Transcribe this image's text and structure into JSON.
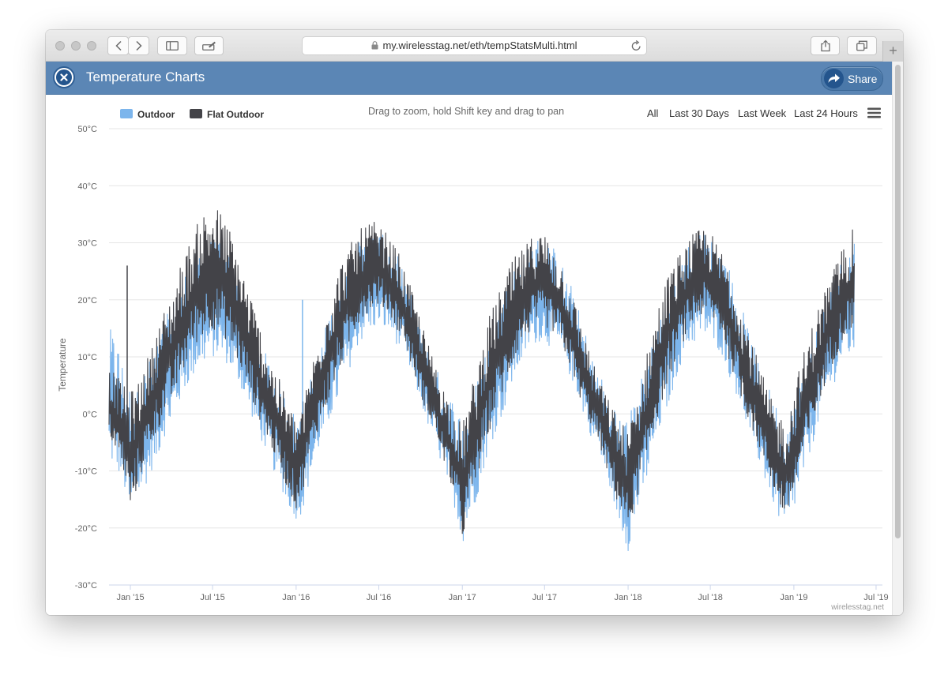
{
  "browser": {
    "url": "my.wirelesstag.net/eth/tempStatsMulti.html",
    "new_tab_label": "+"
  },
  "app": {
    "title": "Temperature Charts",
    "share_label": "Share"
  },
  "controls": {
    "hint": "Drag to zoom, hold Shift key and drag to pan",
    "ranges": [
      "All",
      "Last 30 Days",
      "Last Week",
      "Last 24 Hours"
    ],
    "credits": "wirelesstag.net"
  },
  "colors": {
    "outdoor": "#7cb5ec",
    "flat_outdoor": "#434348",
    "header": "#5b86b5"
  },
  "chart_data": {
    "type": "line",
    "ylabel": "Temperature",
    "ylim": [
      -30,
      50
    ],
    "yticks": [
      -30,
      -20,
      -10,
      0,
      10,
      20,
      30,
      40,
      50
    ],
    "ytick_labels": [
      "-30°C",
      "-20°C",
      "-10°C",
      "0°C",
      "10°C",
      "20°C",
      "30°C",
      "40°C",
      "50°C"
    ],
    "xlim": [
      "2014-11-15",
      "2019-07-15"
    ],
    "xticks": [
      "2015-01-01",
      "2015-07-01",
      "2016-01-01",
      "2016-07-01",
      "2017-01-01",
      "2017-07-01",
      "2018-01-01",
      "2018-07-01",
      "2019-01-01",
      "2019-07-01"
    ],
    "xtick_labels": [
      "Jan '15",
      "Jul '15",
      "Jan '16",
      "Jul '16",
      "Jan '17",
      "Jul '17",
      "Jan '18",
      "Jul '18",
      "Jan '19",
      "Jul '19"
    ],
    "grid": true,
    "legend_position": "top-left",
    "series": [
      {
        "name": "Outdoor",
        "x": [
          "2014-11-15",
          "2014-12-01",
          "2014-12-15",
          "2015-01-01",
          "2015-01-15",
          "2015-02-01",
          "2015-02-15",
          "2015-03-01",
          "2015-03-15",
          "2015-04-01",
          "2015-04-15",
          "2015-05-01",
          "2015-05-15",
          "2015-06-01",
          "2015-06-15",
          "2015-07-01",
          "2015-07-15",
          "2015-08-01",
          "2015-08-15",
          "2015-09-01",
          "2015-09-15",
          "2015-10-01",
          "2015-10-15",
          "2015-11-01",
          "2015-11-15",
          "2015-12-01",
          "2015-12-15",
          "2016-01-01",
          "2016-01-15",
          "2016-02-01",
          "2016-02-15",
          "2016-03-01",
          "2016-03-15",
          "2016-04-01",
          "2016-04-15",
          "2016-05-01",
          "2016-05-15",
          "2016-06-01",
          "2016-06-15",
          "2016-07-01",
          "2016-07-15",
          "2016-08-01",
          "2016-08-15",
          "2016-09-01",
          "2016-09-15",
          "2016-10-01",
          "2016-10-15",
          "2016-11-01",
          "2016-11-15",
          "2016-12-01",
          "2016-12-15",
          "2017-01-01",
          "2017-01-15",
          "2017-02-01",
          "2017-02-15",
          "2017-03-01",
          "2017-03-15",
          "2017-04-01",
          "2017-04-15",
          "2017-05-01",
          "2017-05-15",
          "2017-06-01",
          "2017-06-15",
          "2017-07-01",
          "2017-07-15",
          "2017-08-01",
          "2017-08-15",
          "2017-09-01",
          "2017-09-15",
          "2017-10-01",
          "2017-10-15",
          "2017-11-01",
          "2017-11-15",
          "2017-12-01",
          "2017-12-15",
          "2018-01-01",
          "2018-01-15",
          "2018-02-01",
          "2018-02-15",
          "2018-03-01",
          "2018-03-15",
          "2018-04-01",
          "2018-04-15",
          "2018-05-01",
          "2018-05-15",
          "2018-06-01",
          "2018-06-15",
          "2018-07-01",
          "2018-07-15",
          "2018-08-01",
          "2018-08-15",
          "2018-09-01",
          "2018-09-15",
          "2018-10-01",
          "2018-10-15",
          "2018-11-01",
          "2018-11-15",
          "2018-12-01",
          "2018-12-15",
          "2019-01-01",
          "2019-01-15",
          "2019-02-01",
          "2019-02-15",
          "2019-03-01",
          "2019-03-15",
          "2019-04-01",
          "2019-04-15",
          "2019-05-01",
          "2019-05-15",
          "2019-06-01",
          "2019-06-15",
          "2019-07-01",
          "2019-07-15"
        ],
        "min": [
          -11,
          -12,
          -14,
          -21,
          -17,
          -15,
          -12,
          -10,
          -6,
          -4,
          -1,
          2,
          4,
          6,
          7,
          8,
          8,
          7,
          5,
          3,
          0,
          -3,
          -6,
          -9,
          -12,
          -15,
          -18,
          -20,
          -19,
          -13,
          -9,
          -6,
          -3,
          0,
          4,
          7,
          10,
          12,
          13,
          14,
          13,
          12,
          10,
          8,
          4,
          1,
          -3,
          -6,
          -10,
          -14,
          -18,
          -25,
          -21,
          -17,
          -12,
          -8,
          -5,
          -2,
          2,
          5,
          8,
          10,
          11,
          11,
          10,
          9,
          7,
          4,
          1,
          -3,
          -6,
          -9,
          -13,
          -17,
          -22,
          -26,
          -22,
          -17,
          -13,
          -8,
          -4,
          0,
          4,
          8,
          10,
          11,
          12,
          11,
          10,
          8,
          4,
          1,
          -3,
          -6,
          -10,
          -14,
          -17,
          -21,
          -24,
          -19,
          -15,
          -10,
          -6,
          -2,
          1,
          4,
          7,
          8,
          8
        ],
        "max": [
          15,
          14,
          9,
          5,
          4,
          8,
          10,
          13,
          16,
          19,
          22,
          25,
          27,
          29,
          30,
          31,
          30,
          29,
          26,
          22,
          18,
          15,
          12,
          10,
          7,
          5,
          2,
          0,
          1,
          6,
          10,
          14,
          18,
          22,
          25,
          27,
          30,
          31,
          32,
          32,
          31,
          30,
          27,
          23,
          20,
          16,
          12,
          9,
          6,
          4,
          2,
          0,
          2,
          6,
          10,
          14,
          18,
          21,
          24,
          27,
          28,
          30,
          31,
          31,
          30,
          28,
          25,
          22,
          18,
          14,
          10,
          7,
          4,
          2,
          0,
          -1,
          3,
          7,
          11,
          15,
          18,
          22,
          25,
          28,
          30,
          31,
          32,
          31,
          30,
          28,
          25,
          21,
          17,
          13,
          9,
          6,
          3,
          1,
          -1,
          3,
          7,
          11,
          15,
          18,
          21,
          24,
          27,
          29,
          32,
          30,
          29
        ]
      },
      {
        "name": "Flat Outdoor",
        "x": [
          "2014-11-15",
          "2014-12-01",
          "2014-12-15",
          "2015-01-01",
          "2015-01-15",
          "2015-02-01",
          "2015-02-15",
          "2015-03-01",
          "2015-03-15",
          "2015-04-01",
          "2015-04-15",
          "2015-05-01",
          "2015-05-15",
          "2015-06-01",
          "2015-06-15",
          "2015-07-01",
          "2015-07-15",
          "2015-08-01",
          "2015-08-15",
          "2015-09-01",
          "2015-09-15",
          "2015-10-01",
          "2015-10-15",
          "2015-11-01",
          "2015-11-15",
          "2015-12-01",
          "2015-12-15",
          "2016-01-01",
          "2016-01-15",
          "2016-02-01",
          "2016-02-15",
          "2016-03-01",
          "2016-03-15",
          "2016-04-01",
          "2016-04-15",
          "2016-05-01",
          "2016-05-15",
          "2016-06-01",
          "2016-06-15",
          "2016-07-01",
          "2016-07-15",
          "2016-08-01",
          "2016-08-15",
          "2016-09-01",
          "2016-09-15",
          "2016-10-01",
          "2016-10-15",
          "2016-11-01",
          "2016-11-15",
          "2016-12-01",
          "2016-12-15",
          "2017-01-01",
          "2017-01-15",
          "2017-02-01",
          "2017-02-15",
          "2017-03-01",
          "2017-03-15",
          "2017-04-01",
          "2017-04-15",
          "2017-05-01",
          "2017-05-15",
          "2017-06-01",
          "2017-06-15",
          "2017-07-01",
          "2017-07-15",
          "2017-08-01",
          "2017-08-15",
          "2017-09-01",
          "2017-09-15",
          "2017-10-01",
          "2017-10-15",
          "2017-11-01",
          "2017-11-15",
          "2017-12-01",
          "2017-12-15",
          "2018-01-01",
          "2018-01-15",
          "2018-02-01",
          "2018-02-15",
          "2018-03-01",
          "2018-03-15",
          "2018-04-01",
          "2018-04-15",
          "2018-05-01",
          "2018-05-15",
          "2018-06-01",
          "2018-06-15",
          "2018-07-01",
          "2018-07-15",
          "2018-08-01",
          "2018-08-15",
          "2018-09-01",
          "2018-09-15",
          "2018-10-01",
          "2018-10-15",
          "2018-11-01",
          "2018-11-15",
          "2018-12-01",
          "2018-12-15",
          "2019-01-01",
          "2019-01-15",
          "2019-02-01",
          "2019-02-15",
          "2019-03-01",
          "2019-03-15",
          "2019-04-01",
          "2019-04-15",
          "2019-05-01",
          "2019-05-15",
          "2019-06-01",
          "2019-06-15",
          "2019-07-01",
          "2019-07-15"
        ],
        "min": [
          -5,
          -8,
          -11,
          -19,
          -15,
          -10,
          -7,
          -5,
          -2,
          0,
          3,
          6,
          9,
          11,
          12,
          13,
          12,
          11,
          9,
          6,
          3,
          0,
          -3,
          -6,
          -9,
          -12,
          -15,
          -18,
          -15,
          -9,
          -5,
          -2,
          1,
          5,
          8,
          11,
          14,
          16,
          17,
          18,
          17,
          15,
          13,
          10,
          6,
          2,
          -1,
          -4,
          -8,
          -12,
          -16,
          -24,
          -19,
          -14,
          -9,
          -5,
          -1,
          2,
          5,
          9,
          11,
          13,
          14,
          14,
          13,
          12,
          9,
          6,
          2,
          -1,
          -4,
          -7,
          -11,
          -15,
          -19,
          -22,
          -18,
          -13,
          -9,
          -4,
          0,
          4,
          8,
          11,
          13,
          15,
          16,
          15,
          14,
          11,
          7,
          3,
          -1,
          -4,
          -7,
          -11,
          -14,
          -18,
          -20,
          -16,
          -12,
          -7,
          -3,
          1,
          5,
          8,
          11,
          13,
          13
        ],
        "max": [
          8,
          7,
          5,
          4,
          5,
          9,
          11,
          15,
          18,
          21,
          25,
          28,
          31,
          34,
          36,
          37,
          36,
          34,
          31,
          27,
          23,
          19,
          15,
          11,
          8,
          5,
          2,
          -1,
          2,
          8,
          12,
          17,
          21,
          25,
          28,
          30,
          32,
          33,
          34,
          33,
          32,
          30,
          28,
          24,
          21,
          17,
          13,
          9,
          6,
          3,
          1,
          -2,
          3,
          8,
          13,
          17,
          20,
          23,
          26,
          28,
          29,
          31,
          32,
          32,
          30,
          28,
          25,
          21,
          17,
          13,
          9,
          6,
          3,
          1,
          -1,
          -3,
          2,
          7,
          12,
          17,
          21,
          25,
          27,
          29,
          31,
          32,
          33,
          32,
          30,
          28,
          25,
          21,
          17,
          13,
          9,
          5,
          2,
          0,
          -1,
          4,
          9,
          13,
          17,
          20,
          23,
          26,
          29,
          31,
          33,
          31,
          29
        ]
      }
    ],
    "annotations": [
      {
        "series": "Flat Outdoor",
        "x": "2014-12-25",
        "y": 26
      },
      {
        "series": "Outdoor",
        "x": "2016-01-15",
        "y": 20
      }
    ]
  }
}
